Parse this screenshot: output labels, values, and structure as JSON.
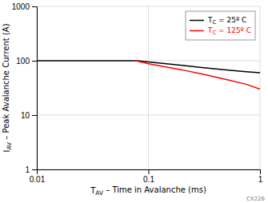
{
  "chart_data": {
    "type": "line",
    "x_label": "TAV – Time in Avalanche (ms)",
    "y_label": "IAV – Peak Avalanche Current (A)",
    "log": true,
    "xlim": [
      0.01,
      1.0
    ],
    "ylim": [
      1,
      1000
    ],
    "xticks": [
      0.01,
      0.1,
      1
    ],
    "yticks": [
      1,
      10,
      100,
      1000
    ],
    "grid": true,
    "legend": "upper right",
    "series": [
      {
        "name": "TC = 25º C",
        "color": "black",
        "x": [
          0.01,
          0.075,
          0.08,
          0.1,
          0.2,
          0.3,
          0.5,
          0.75,
          1.0
        ],
        "values": [
          100,
          100,
          100,
          95,
          82,
          75,
          68,
          63,
          60
        ]
      },
      {
        "name": "TC = 125º C",
        "color": "red",
        "x": [
          0.075,
          0.08,
          0.1,
          0.2,
          0.3,
          0.5,
          0.75,
          1.0
        ],
        "values": [
          100,
          98,
          88,
          68,
          57,
          45,
          37,
          30
        ]
      }
    ],
    "annotations": [
      "CX226"
    ]
  }
}
